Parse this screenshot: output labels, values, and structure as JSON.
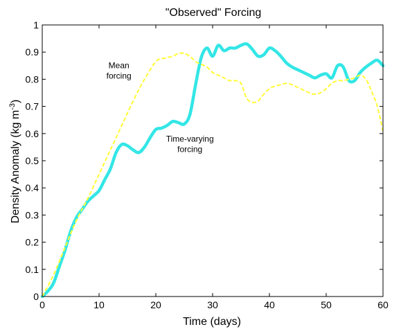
{
  "chart_data": {
    "type": "line",
    "title": "\"Observed\" Forcing",
    "xlabel": "Time (days)",
    "ylabel": "Density Anomaly (kg m",
    "ylabel_sup": "-3",
    "ylabel_close": ")",
    "xlim": [
      0,
      60
    ],
    "ylim": [
      0,
      1
    ],
    "xticks": [
      0,
      10,
      20,
      30,
      40,
      50,
      60
    ],
    "yticks": [
      0,
      0.1,
      0.2,
      0.3,
      0.4,
      0.5,
      0.6,
      0.7,
      0.8,
      0.9,
      1
    ],
    "xtick_labels": [
      "0",
      "10",
      "20",
      "30",
      "40",
      "50",
      "60"
    ],
    "ytick_labels": [
      "0",
      "0.1",
      "0.2",
      "0.3",
      "0.4",
      "0.5",
      "0.6",
      "0.7",
      "0.8",
      "0.9",
      "1"
    ],
    "grid": false,
    "annotations": [
      {
        "lines": [
          "Mean",
          "forcing"
        ],
        "x": 13.5,
        "y": 0.84
      },
      {
        "lines": [
          "Time-varying",
          "forcing"
        ],
        "x": 26,
        "y": 0.57
      }
    ],
    "series": [
      {
        "key": "time_varying",
        "color": "#33e6e6",
        "style": "solid",
        "x": [
          0,
          1,
          2,
          3,
          4,
          5,
          6,
          7,
          8,
          9,
          10,
          11,
          12,
          13,
          14,
          15,
          16,
          17,
          18,
          19,
          20,
          21,
          22,
          23,
          24,
          25,
          26,
          27,
          28,
          29,
          30,
          31,
          32,
          33,
          34,
          35,
          36,
          37,
          38,
          39,
          40,
          41,
          42,
          43,
          44,
          45,
          46,
          47,
          48,
          49,
          50,
          51,
          52,
          53,
          54,
          55,
          56,
          57,
          58,
          59,
          60
        ],
        "y": [
          0.0,
          0.02,
          0.05,
          0.11,
          0.17,
          0.24,
          0.29,
          0.32,
          0.35,
          0.37,
          0.39,
          0.43,
          0.47,
          0.53,
          0.56,
          0.555,
          0.54,
          0.53,
          0.55,
          0.585,
          0.615,
          0.62,
          0.63,
          0.645,
          0.64,
          0.635,
          0.67,
          0.78,
          0.88,
          0.915,
          0.885,
          0.925,
          0.905,
          0.915,
          0.915,
          0.925,
          0.93,
          0.91,
          0.885,
          0.89,
          0.915,
          0.905,
          0.885,
          0.86,
          0.845,
          0.835,
          0.825,
          0.815,
          0.805,
          0.815,
          0.82,
          0.805,
          0.85,
          0.845,
          0.795,
          0.795,
          0.825,
          0.845,
          0.86,
          0.87,
          0.85
        ]
      },
      {
        "key": "mean",
        "color": "#ffff33",
        "style": "dashed",
        "x": [
          0,
          2,
          4,
          6,
          8,
          10,
          12,
          14,
          16,
          18,
          20,
          21,
          22,
          23,
          24,
          25,
          26,
          27,
          28,
          29,
          30,
          31,
          32,
          33,
          34,
          35,
          36,
          37,
          38,
          39,
          40,
          41,
          42,
          43,
          44,
          45,
          46,
          47,
          48,
          49,
          50,
          51,
          52,
          53,
          54,
          55,
          56,
          57,
          58,
          59,
          60
        ],
        "y": [
          0.0,
          0.08,
          0.18,
          0.28,
          0.36,
          0.45,
          0.54,
          0.63,
          0.72,
          0.8,
          0.865,
          0.875,
          0.88,
          0.885,
          0.895,
          0.895,
          0.885,
          0.865,
          0.855,
          0.845,
          0.825,
          0.815,
          0.805,
          0.795,
          0.795,
          0.785,
          0.73,
          0.715,
          0.72,
          0.745,
          0.765,
          0.775,
          0.78,
          0.785,
          0.78,
          0.77,
          0.76,
          0.75,
          0.745,
          0.75,
          0.765,
          0.785,
          0.795,
          0.795,
          0.8,
          0.805,
          0.815,
          0.8,
          0.755,
          0.7,
          0.61
        ]
      }
    ]
  }
}
